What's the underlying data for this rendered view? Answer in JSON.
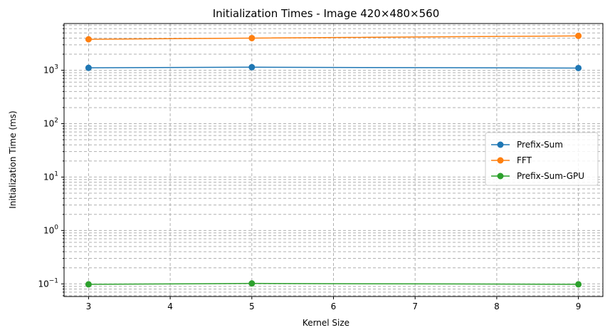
{
  "chart_data": {
    "type": "line",
    "title": "Initialization Times - Image 420×480×560",
    "xlabel": "Kernel Size",
    "ylabel": "Initialization Time (ms)",
    "yscale": "log",
    "grid": true,
    "legend_position": "center-right",
    "xlim": [
      2.7,
      9.3
    ],
    "ylim": [
      0.058,
      7500
    ],
    "x": [
      3,
      5,
      9
    ],
    "x_ticks": [
      3,
      4,
      5,
      6,
      7,
      8,
      9
    ],
    "y_ticks": [
      {
        "base": "10",
        "exp": "−1",
        "value": 0.1
      },
      {
        "base": "10",
        "exp": "0",
        "value": 1
      },
      {
        "base": "10",
        "exp": "1",
        "value": 10
      },
      {
        "base": "10",
        "exp": "2",
        "value": 100
      },
      {
        "base": "10",
        "exp": "3",
        "value": 1000
      }
    ],
    "series": [
      {
        "name": "Prefix-Sum",
        "color": "#1f77b4",
        "values": [
          1110,
          1140,
          1100
        ]
      },
      {
        "name": "FFT",
        "color": "#ff7f0e",
        "values": [
          3800,
          4000,
          4400
        ]
      },
      {
        "name": "Prefix-Sum-GPU",
        "color": "#2ca02c",
        "values": [
          0.098,
          0.102,
          0.098
        ]
      }
    ]
  }
}
